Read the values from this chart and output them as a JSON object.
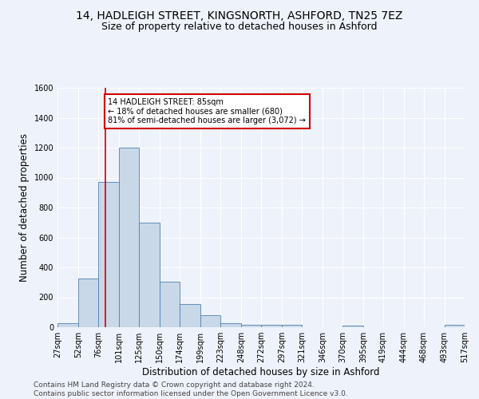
{
  "title": "14, HADLEIGH STREET, KINGSNORTH, ASHFORD, TN25 7EZ",
  "subtitle": "Size of property relative to detached houses in Ashford",
  "xlabel": "Distribution of detached houses by size in Ashford",
  "ylabel": "Number of detached properties",
  "bar_edges": [
    27,
    52,
    76,
    101,
    125,
    150,
    174,
    199,
    223,
    248,
    272,
    297,
    321,
    346,
    370,
    395,
    419,
    444,
    468,
    493,
    517
  ],
  "bar_heights": [
    28,
    325,
    970,
    1200,
    700,
    305,
    155,
    78,
    28,
    18,
    15,
    15,
    0,
    0,
    12,
    0,
    0,
    0,
    0,
    15
  ],
  "bar_color": "#c8d8e8",
  "bar_edge_color": "#5080b0",
  "red_line_x": 85,
  "annotation_text": "14 HADLEIGH STREET: 85sqm\n← 18% of detached houses are smaller (680)\n81% of semi-detached houses are larger (3,072) →",
  "annotation_box_color": "#ffffff",
  "annotation_box_edge": "#cc0000",
  "ylim": [
    0,
    1600
  ],
  "yticks": [
    0,
    200,
    400,
    600,
    800,
    1000,
    1200,
    1400,
    1600
  ],
  "tick_labels": [
    "27sqm",
    "52sqm",
    "76sqm",
    "101sqm",
    "125sqm",
    "150sqm",
    "174sqm",
    "199sqm",
    "223sqm",
    "248sqm",
    "272sqm",
    "297sqm",
    "321sqm",
    "346sqm",
    "370sqm",
    "395sqm",
    "419sqm",
    "444sqm",
    "468sqm",
    "493sqm",
    "517sqm"
  ],
  "footer_text": "Contains HM Land Registry data © Crown copyright and database right 2024.\nContains public sector information licensed under the Open Government Licence v3.0.",
  "bg_color": "#eef2fa",
  "grid_color": "#ffffff",
  "title_fontsize": 10,
  "subtitle_fontsize": 9,
  "label_fontsize": 8.5,
  "tick_fontsize": 7,
  "footer_fontsize": 6.5
}
